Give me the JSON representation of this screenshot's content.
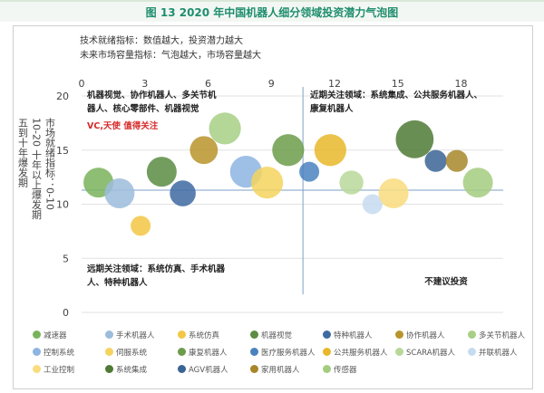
{
  "title": "图 13    2020 年中国机器人细分领域投资潜力气泡图",
  "chart_data": {
    "type": "scatter",
    "subtype": "bubble",
    "explanation_lines": [
      "技术就绪指标：数值越大，投资潜力越大",
      "未来市场容量指标：气泡越大，市场容量越大"
    ],
    "ylabel_lines": [
      "市场就绪指标：0-10",
      "10-20 十年以上爆发期",
      "五到十年爆发期"
    ],
    "xlim": [
      0,
      20
    ],
    "ylim": [
      0,
      20
    ],
    "x_ticks": [
      0,
      3,
      6,
      9,
      12,
      15,
      18
    ],
    "y_ticks": [
      0,
      5,
      10,
      15,
      20
    ],
    "grid": "horizontal",
    "divider": {
      "x": 10.5,
      "y": 11.3
    },
    "quadrant_labels": [
      {
        "lines": [
          "机器视觉、协作机器人、多关节机",
          "器人、核心零部件、机器视觉"
        ],
        "note": "VC,天使 值得关注"
      },
      {
        "lines": [
          "近期关注领域：系统集成、公共服务机器人、",
          "康复机器人"
        ],
        "note": ""
      },
      {
        "lines": [
          "远期关注领域：系统仿真、手术机器",
          "人、特种机器人"
        ],
        "note": ""
      },
      {
        "lines": [
          "不建议投资"
        ],
        "note": ""
      }
    ],
    "legend_position": "bottom",
    "series": [
      {
        "name": "减速器",
        "color": "#79b35a",
        "x": 0.8,
        "y": 12,
        "size": 3
      },
      {
        "name": "手术机器人",
        "color": "#9cbcdc",
        "x": 1.8,
        "y": 11,
        "size": 3
      },
      {
        "name": "系统仿真",
        "color": "#f2c744",
        "x": 2.8,
        "y": 8,
        "size": 2
      },
      {
        "name": "机器视觉",
        "color": "#5b8c43",
        "x": 3.8,
        "y": 13,
        "size": 3
      },
      {
        "name": "特种机器人",
        "color": "#3e6aa2",
        "x": 4.8,
        "y": 11,
        "size": 2.6
      },
      {
        "name": "协作机器人",
        "color": "#b8942b",
        "x": 5.8,
        "y": 15,
        "size": 2.8
      },
      {
        "name": "多关节机器人",
        "color": "#a7cf85",
        "x": 6.8,
        "y": 17,
        "size": 3.2
      },
      {
        "name": "控制系统",
        "color": "#8db4e2",
        "x": 7.8,
        "y": 13,
        "size": 3.2
      },
      {
        "name": "伺服系统",
        "color": "#f4d35e",
        "x": 8.8,
        "y": 12,
        "size": 3.2
      },
      {
        "name": "康复机器人",
        "color": "#6c9c4a",
        "x": 9.8,
        "y": 15,
        "size": 3.2
      },
      {
        "name": "医疗服务机器人",
        "color": "#4a82c0",
        "x": 10.8,
        "y": 13,
        "size": 2
      },
      {
        "name": "公共服务机器人",
        "color": "#e8b82a",
        "x": 11.8,
        "y": 15,
        "size": 3.2
      },
      {
        "name": "SCARA机器人",
        "color": "#b8d89a",
        "x": 12.8,
        "y": 12,
        "size": 2.4
      },
      {
        "name": "并联机器人",
        "color": "#c5dbf0",
        "x": 13.8,
        "y": 10,
        "size": 2
      },
      {
        "name": "工业控制",
        "color": "#f8dc7e",
        "x": 14.8,
        "y": 11,
        "size": 3
      },
      {
        "name": "系统集成",
        "color": "#4f7a35",
        "x": 15.8,
        "y": 16,
        "size": 3.8
      },
      {
        "name": "AGV机器人",
        "color": "#3a6494",
        "x": 16.8,
        "y": 14,
        "size": 2.2
      },
      {
        "name": "家用机器人",
        "color": "#a8872a",
        "x": 17.8,
        "y": 14,
        "size": 2.2
      },
      {
        "name": "传感器",
        "color": "#a4cc80",
        "x": 18.8,
        "y": 12,
        "size": 3
      }
    ]
  }
}
